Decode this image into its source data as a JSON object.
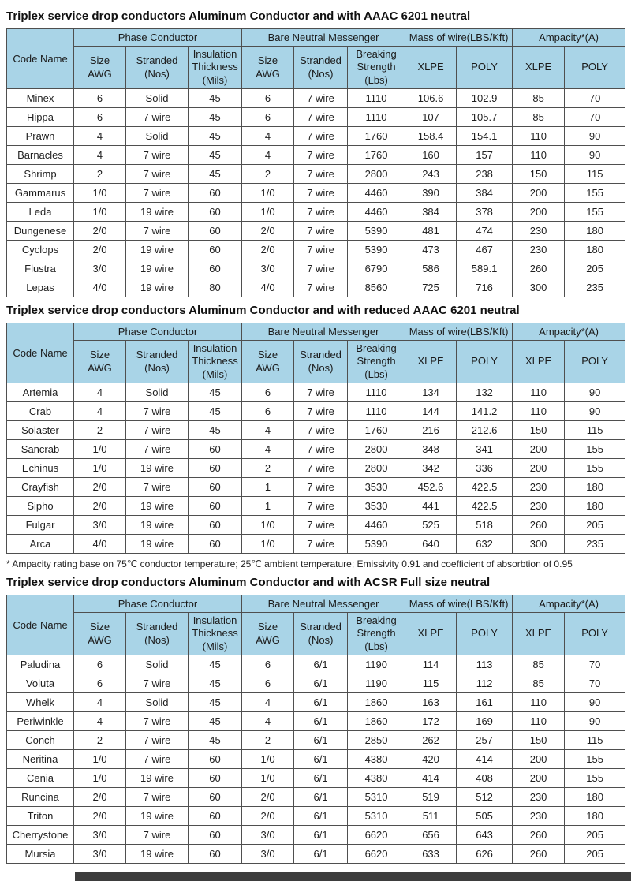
{
  "colors": {
    "header_bg": "#a9d4e7",
    "border": "#4f4f4f",
    "bottom_bar": "#3d3d3d"
  },
  "table_header": {
    "code_name": "Code Name",
    "groups": [
      {
        "label": "Phase Conductor",
        "cols": [
          "Size\nAWG",
          "Stranded\n(Nos)",
          "Insulation\nThickness\n(Mils)"
        ]
      },
      {
        "label": "Bare Neutral Messenger",
        "cols": [
          "Size\nAWG",
          "Stranded\n(Nos)",
          "Breaking\nStrength\n(Lbs)"
        ]
      },
      {
        "label": "Mass of wire(LBS/Kft)",
        "cols": [
          "XLPE",
          "POLY"
        ]
      },
      {
        "label": "Ampacity*(A)",
        "cols": [
          "XLPE",
          "POLY"
        ]
      }
    ]
  },
  "tables": [
    {
      "title": "Triplex service drop conductors Aluminum Conductor and with AAAC 6201 neutral",
      "rows": [
        [
          "Minex",
          "6",
          "Solid",
          "45",
          "6",
          "7 wire",
          "1110",
          "106.6",
          "102.9",
          "85",
          "70"
        ],
        [
          "Hippa",
          "6",
          "7 wire",
          "45",
          "6",
          "7 wire",
          "1110",
          "107",
          "105.7",
          "85",
          "70"
        ],
        [
          "Prawn",
          "4",
          "Solid",
          "45",
          "4",
          "7 wire",
          "1760",
          "158.4",
          "154.1",
          "110",
          "90"
        ],
        [
          "Barnacles",
          "4",
          "7 wire",
          "45",
          "4",
          "7 wire",
          "1760",
          "160",
          "157",
          "110",
          "90"
        ],
        [
          "Shrimp",
          "2",
          "7 wire",
          "45",
          "2",
          "7 wire",
          "2800",
          "243",
          "238",
          "150",
          "115"
        ],
        [
          "Gammarus",
          "1/0",
          "7 wire",
          "60",
          "1/0",
          "7 wire",
          "4460",
          "390",
          "384",
          "200",
          "155"
        ],
        [
          "Leda",
          "1/0",
          "19 wire",
          "60",
          "1/0",
          "7 wire",
          "4460",
          "384",
          "378",
          "200",
          "155"
        ],
        [
          "Dungenese",
          "2/0",
          "7 wire",
          "60",
          "2/0",
          "7 wire",
          "5390",
          "481",
          "474",
          "230",
          "180"
        ],
        [
          "Cyclops",
          "2/0",
          "19 wire",
          "60",
          "2/0",
          "7 wire",
          "5390",
          "473",
          "467",
          "230",
          "180"
        ],
        [
          "Flustra",
          "3/0",
          "19 wire",
          "60",
          "3/0",
          "7 wire",
          "6790",
          "586",
          "589.1",
          "260",
          "205"
        ],
        [
          "Lepas",
          "4/0",
          "19 wire",
          "80",
          "4/0",
          "7 wire",
          "8560",
          "725",
          "716",
          "300",
          "235"
        ]
      ]
    },
    {
      "title": "Triplex service drop conductors Aluminum Conductor and with reduced AAAC 6201 neutral",
      "rows": [
        [
          "Artemia",
          "4",
          "Solid",
          "45",
          "6",
          "7 wire",
          "1110",
          "134",
          "132",
          "110",
          "90"
        ],
        [
          "Crab",
          "4",
          "7 wire",
          "45",
          "6",
          "7 wire",
          "1110",
          "144",
          "141.2",
          "110",
          "90"
        ],
        [
          "Solaster",
          "2",
          "7 wire",
          "45",
          "4",
          "7 wire",
          "1760",
          "216",
          "212.6",
          "150",
          "115"
        ],
        [
          "Sancrab",
          "1/0",
          "7 wire",
          "60",
          "4",
          "7 wire",
          "2800",
          "348",
          "341",
          "200",
          "155"
        ],
        [
          "Echinus",
          "1/0",
          "19 wire",
          "60",
          "2",
          "7 wire",
          "2800",
          "342",
          "336",
          "200",
          "155"
        ],
        [
          "Crayfish",
          "2/0",
          "7 wire",
          "60",
          "1",
          "7 wire",
          "3530",
          "452.6",
          "422.5",
          "230",
          "180"
        ],
        [
          "Sipho",
          "2/0",
          "19 wire",
          "60",
          "1",
          "7 wire",
          "3530",
          "441",
          "422.5",
          "230",
          "180"
        ],
        [
          "Fulgar",
          "3/0",
          "19 wire",
          "60",
          "1/0",
          "7 wire",
          "4460",
          "525",
          "518",
          "260",
          "205"
        ],
        [
          "Arca",
          "4/0",
          "19 wire",
          "60",
          "1/0",
          "7 wire",
          "5390",
          "640",
          "632",
          "300",
          "235"
        ]
      ]
    },
    {
      "title": "Triplex service drop conductors Aluminum Conductor and with ACSR Full size neutral",
      "rows": [
        [
          "Paludina",
          "6",
          "Solid",
          "45",
          "6",
          "6/1",
          "1190",
          "114",
          "113",
          "85",
          "70"
        ],
        [
          "Voluta",
          "6",
          "7 wire",
          "45",
          "6",
          "6/1",
          "1190",
          "115",
          "112",
          "85",
          "70"
        ],
        [
          "Whelk",
          "4",
          "Solid",
          "45",
          "4",
          "6/1",
          "1860",
          "163",
          "161",
          "110",
          "90"
        ],
        [
          "Periwinkle",
          "4",
          "7 wire",
          "45",
          "4",
          "6/1",
          "1860",
          "172",
          "169",
          "110",
          "90"
        ],
        [
          "Conch",
          "2",
          "7 wire",
          "45",
          "2",
          "6/1",
          "2850",
          "262",
          "257",
          "150",
          "115"
        ],
        [
          "Neritina",
          "1/0",
          "7 wire",
          "60",
          "1/0",
          "6/1",
          "4380",
          "420",
          "414",
          "200",
          "155"
        ],
        [
          "Cenia",
          "1/0",
          "19 wire",
          "60",
          "1/0",
          "6/1",
          "4380",
          "414",
          "408",
          "200",
          "155"
        ],
        [
          "Runcina",
          "2/0",
          "7 wire",
          "60",
          "2/0",
          "6/1",
          "5310",
          "519",
          "512",
          "230",
          "180"
        ],
        [
          "Triton",
          "2/0",
          "19 wire",
          "60",
          "2/0",
          "6/1",
          "5310",
          "511",
          "505",
          "230",
          "180"
        ],
        [
          "Cherrystone",
          "3/0",
          "7 wire",
          "60",
          "3/0",
          "6/1",
          "6620",
          "656",
          "643",
          "260",
          "205"
        ],
        [
          "Mursia",
          "3/0",
          "19 wire",
          "60",
          "3/0",
          "6/1",
          "6620",
          "633",
          "626",
          "260",
          "205"
        ]
      ]
    }
  ],
  "footnote": "* Ampacity rating base on 75℃ conductor temperature; 25℃ ambient temperature; Emissivity 0.91 and coefficient of absorbtion of 0.95"
}
